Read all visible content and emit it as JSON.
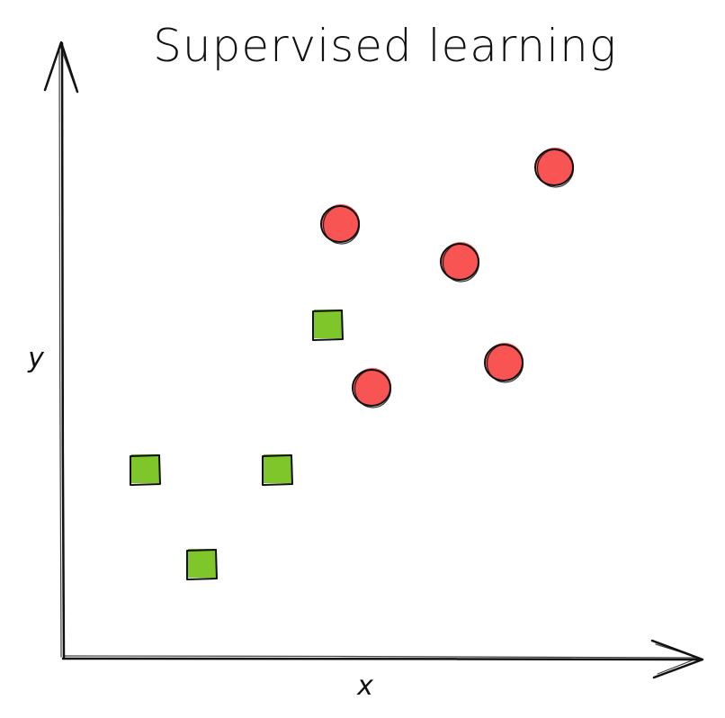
{
  "chart_data": {
    "type": "scatter",
    "title": "Supervised learning",
    "xlabel": "x",
    "ylabel": "y",
    "xlim": [
      0,
      10
    ],
    "ylim": [
      0,
      10
    ],
    "grid": false,
    "ticks": false,
    "legend": "none",
    "series": [
      {
        "marker": "square",
        "color": "#7ec62a",
        "points": [
          {
            "x": 1.3,
            "y": 3.0
          },
          {
            "x": 2.2,
            "y": 1.5
          },
          {
            "x": 3.4,
            "y": 3.0
          },
          {
            "x": 4.2,
            "y": 5.3
          }
        ]
      },
      {
        "marker": "circle",
        "color": "#f95454",
        "points": [
          {
            "x": 4.4,
            "y": 6.9
          },
          {
            "x": 4.9,
            "y": 4.3
          },
          {
            "x": 6.3,
            "y": 6.3
          },
          {
            "x": 7.0,
            "y": 4.7
          },
          {
            "x": 7.8,
            "y": 7.8
          }
        ]
      }
    ]
  }
}
